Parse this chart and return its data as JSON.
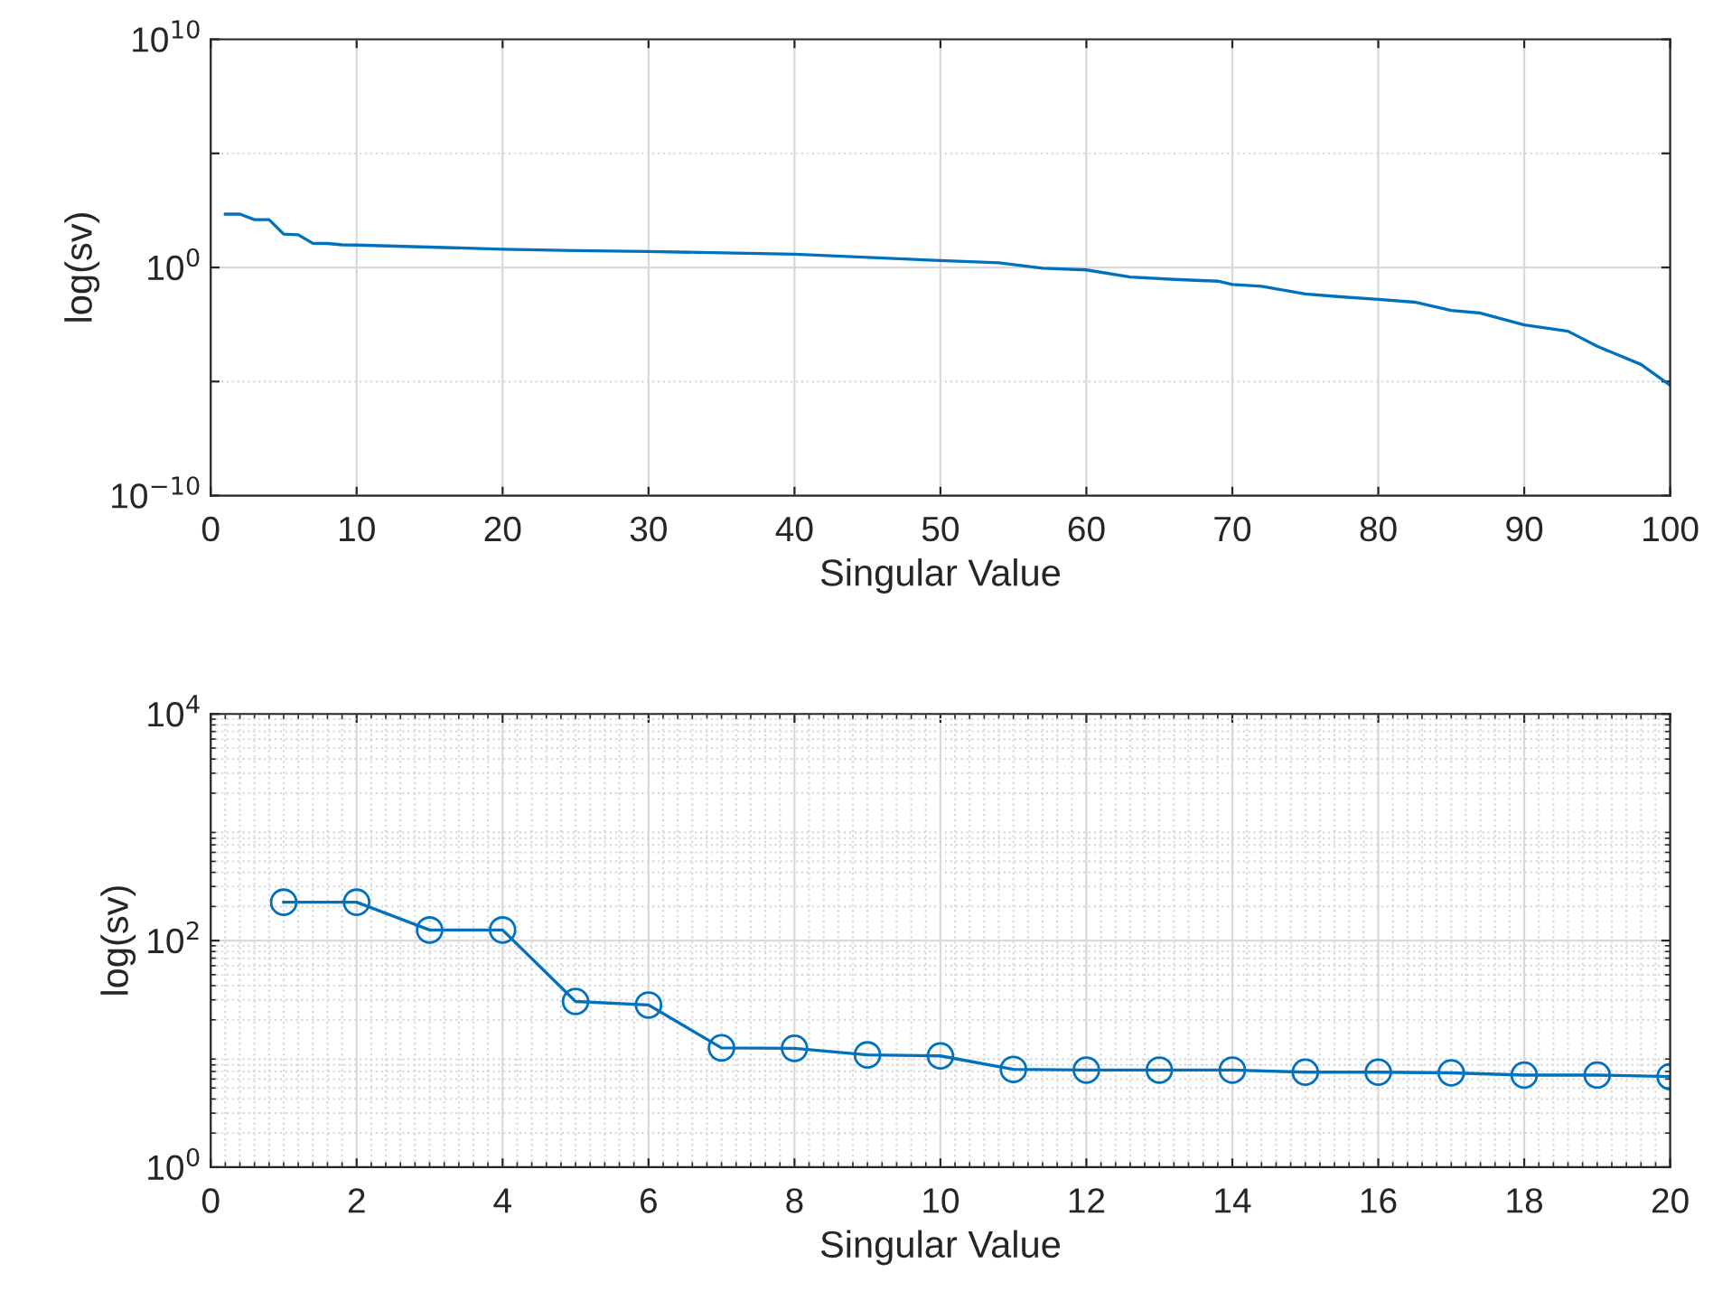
{
  "chart_data": [
    {
      "type": "line",
      "xlabel": "Singular Value",
      "ylabel": "log(sv)",
      "log": "y",
      "grid": true,
      "marker": "none",
      "line_style": "solid",
      "x": [
        1,
        2,
        3,
        4,
        5,
        6,
        7,
        8,
        9,
        10,
        20,
        25,
        30,
        40,
        50,
        54,
        57,
        60,
        63,
        66,
        69,
        70,
        72,
        75,
        77,
        80,
        82.5,
        85,
        87,
        90,
        93,
        95,
        98,
        100
      ],
      "series": [
        {
          "color": "#0072bd",
          "values": [
            218,
            218,
            124,
            124,
            29,
            27,
            11.3,
            11.2,
            9.8,
            9.6,
            6.3,
            5.5,
            5.0,
            3.8,
            2.0,
            1.6,
            0.93,
            0.78,
            0.38,
            0.3,
            0.25,
            0.18,
            0.15,
            0.069,
            0.054,
            0.04,
            0.03,
            0.013,
            0.01,
            0.003,
            0.0016,
            0.00035,
            5.6e-05,
            6.8e-06
          ]
        }
      ],
      "xlim": [
        0,
        100
      ],
      "xticks": [
        0,
        10,
        20,
        30,
        40,
        50,
        60,
        70,
        80,
        90,
        100
      ],
      "ylim": [
        1e-10,
        10000000000.0
      ],
      "yticks": [
        {
          "value": 1e-10,
          "label": "10$^{−10}$"
        },
        {
          "value": 1e-05,
          "label": null
        },
        {
          "value": 1,
          "label": "10$^{0}$"
        },
        {
          "value": 100000.0,
          "label": null
        },
        {
          "value": 10000000000.0,
          "label": "10$^{10}$"
        }
      ]
    },
    {
      "type": "line",
      "xlabel": "Singular Value",
      "ylabel": "log(sv)",
      "log": "y",
      "grid": true,
      "marker": "circle",
      "line_style": "solid",
      "x": [
        1,
        2,
        3,
        4,
        5,
        6,
        7,
        8,
        9,
        10,
        11,
        12,
        13,
        14,
        15,
        16,
        17,
        18,
        19,
        20
      ],
      "series": [
        {
          "color": "#0072bd",
          "values": [
            218,
            218,
            124,
            124,
            29,
            27,
            11.3,
            11.2,
            9.8,
            9.6,
            7.3,
            7.2,
            7.2,
            7.2,
            6.9,
            6.9,
            6.8,
            6.5,
            6.5,
            6.3
          ]
        }
      ],
      "xlim": [
        0,
        20
      ],
      "xticks": [
        0,
        2,
        4,
        6,
        8,
        10,
        12,
        14,
        16,
        18,
        20
      ],
      "ylim": [
        1,
        10000
      ],
      "yticks": [
        {
          "value": 1,
          "label": "10$^{0}$"
        },
        {
          "value": 100,
          "label": "10$^{2}$"
        },
        {
          "value": 10000,
          "label": "10$^{4}$"
        }
      ]
    }
  ]
}
